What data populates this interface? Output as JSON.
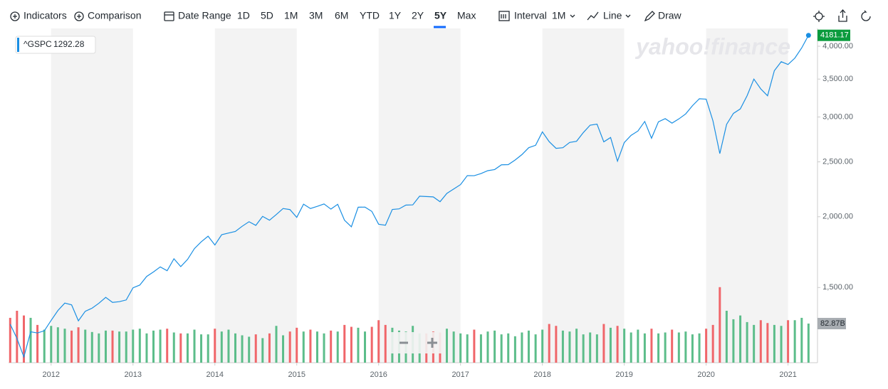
{
  "toolbar": {
    "indicators": "Indicators",
    "comparison": "Comparison",
    "date_range": "Date Range",
    "ranges": [
      "1D",
      "5D",
      "1M",
      "3M",
      "6M",
      "YTD",
      "1Y",
      "2Y",
      "5Y",
      "Max"
    ],
    "selected": 8,
    "interval": "Interval",
    "interval_value": "1M",
    "chart_style": "Line",
    "draw": "Draw"
  },
  "watermark": "yahoo!finance",
  "chart_data": {
    "type": "line",
    "log_scale": true,
    "x": [
      2011.5,
      2011.583,
      2011.667,
      2011.75,
      2011.833,
      2011.917,
      2012,
      2012.083,
      2012.167,
      2012.25,
      2012.333,
      2012.417,
      2012.5,
      2012.583,
      2012.667,
      2012.75,
      2012.833,
      2012.917,
      2013,
      2013.083,
      2013.167,
      2013.25,
      2013.333,
      2013.417,
      2013.5,
      2013.583,
      2013.667,
      2013.75,
      2013.833,
      2013.917,
      2014,
      2014.083,
      2014.167,
      2014.25,
      2014.333,
      2014.417,
      2014.5,
      2014.583,
      2014.667,
      2014.75,
      2014.833,
      2014.917,
      2015,
      2015.083,
      2015.167,
      2015.25,
      2015.333,
      2015.417,
      2015.5,
      2015.583,
      2015.667,
      2015.75,
      2015.833,
      2015.917,
      2016,
      2016.083,
      2016.167,
      2016.25,
      2016.333,
      2016.417,
      2016.5,
      2016.583,
      2016.667,
      2016.75,
      2016.833,
      2016.917,
      2017,
      2017.083,
      2017.167,
      2017.25,
      2017.333,
      2017.417,
      2017.5,
      2017.583,
      2017.667,
      2017.75,
      2017.833,
      2017.917,
      2018,
      2018.083,
      2018.167,
      2018.25,
      2018.333,
      2018.417,
      2018.5,
      2018.583,
      2018.667,
      2018.75,
      2018.833,
      2018.917,
      2019,
      2019.083,
      2019.167,
      2019.25,
      2019.333,
      2019.417,
      2019.5,
      2019.583,
      2019.667,
      2019.75,
      2019.833,
      2019.917,
      2020,
      2020.083,
      2020.167,
      2020.25,
      2020.333,
      2020.417,
      2020.5,
      2020.583,
      2020.667,
      2020.75,
      2020.833,
      2020.917,
      2021,
      2021.083,
      2021.167,
      2021.25
    ],
    "xlim": [
      2011.48,
      2021.36
    ],
    "xticks": [
      2012,
      2013,
      2014,
      2015,
      2016,
      2017,
      2018,
      2019,
      2020,
      2021
    ],
    "ylim": [
      1105,
      4300
    ],
    "yticks": [
      {
        "value": 1500,
        "label": "1,500.00"
      },
      {
        "value": 2000,
        "label": "2,000.00"
      },
      {
        "value": 2500,
        "label": "2,500.00"
      },
      {
        "value": 3000,
        "label": "3,000.00"
      },
      {
        "value": 3500,
        "label": "3,500.00"
      },
      {
        "value": 4000,
        "label": "4,000.00"
      }
    ],
    "y2lim": [
      0,
      708
    ],
    "series": [
      {
        "name": "^GSPC",
        "color": "#1a8fe3",
        "values": [
          1292.28,
          1219,
          1131,
          1253,
          1247,
          1258,
          1312,
          1366,
          1408,
          1398,
          1310,
          1362,
          1379,
          1407,
          1441,
          1412,
          1416,
          1426,
          1498,
          1515,
          1569,
          1598,
          1631,
          1606,
          1686,
          1633,
          1682,
          1757,
          1806,
          1848,
          1783,
          1859,
          1872,
          1884,
          1924,
          1960,
          1931,
          2003,
          1972,
          2018,
          2068,
          2059,
          1995,
          2105,
          2068,
          2086,
          2107,
          2063,
          2104,
          1972,
          1920,
          2079,
          2080,
          2044,
          1940,
          1932,
          2060,
          2065,
          2097,
          2099,
          2174,
          2171,
          2168,
          2126,
          2199,
          2239,
          2279,
          2364,
          2363,
          2384,
          2412,
          2423,
          2470,
          2472,
          2519,
          2575,
          2648,
          2674,
          2824,
          2714,
          2641,
          2648,
          2705,
          2718,
          2816,
          2902,
          2914,
          2712,
          2760,
          2507,
          2704,
          2784,
          2834,
          2946,
          2752,
          2942,
          2980,
          2926,
          2977,
          3038,
          3141,
          3231,
          3226,
          2954,
          2585,
          2912,
          3044,
          3100,
          3271,
          3500,
          3363,
          3270,
          3622,
          3756,
          3714,
          3811,
          3973,
          4181.17
        ]
      },
      {
        "type": "bar",
        "axis": "y2",
        "up_color": "#5cbd8a",
        "down_color": "#f0666a",
        "values": [
          95,
          110,
          100,
          95,
          80,
          70,
          78,
          75,
          72,
          68,
          75,
          70,
          65,
          62,
          68,
          68,
          66,
          66,
          70,
          72,
          62,
          68,
          70,
          72,
          64,
          62,
          62,
          70,
          60,
          60,
          72,
          66,
          70,
          62,
          58,
          55,
          60,
          52,
          62,
          78,
          58,
          66,
          74,
          66,
          70,
          66,
          62,
          68,
          66,
          80,
          76,
          74,
          66,
          76,
          90,
          80,
          74,
          68,
          66,
          78,
          62,
          62,
          66,
          64,
          72,
          66,
          62,
          60,
          70,
          60,
          66,
          68,
          60,
          62,
          56,
          64,
          68,
          60,
          70,
          82,
          78,
          68,
          66,
          72,
          60,
          64,
          60,
          82,
          74,
          78,
          72,
          64,
          70,
          62,
          72,
          62,
          64,
          70,
          64,
          66,
          60,
          62,
          72,
          80,
          160,
          110,
          92,
          100,
          86,
          80,
          90,
          84,
          80,
          78,
          90,
          90,
          95,
          82.87
        ],
        "value_labels": [
          null,
          null,
          null,
          null,
          null,
          null,
          null,
          null,
          null,
          null,
          null,
          null,
          null,
          null,
          null,
          null,
          null,
          null,
          null,
          null,
          null,
          null,
          null,
          null,
          null,
          null,
          null,
          null,
          null,
          null,
          null,
          null,
          null,
          null,
          null,
          null,
          null,
          null,
          null,
          null,
          null,
          null,
          null,
          null,
          null,
          null,
          null,
          null,
          null,
          null,
          null,
          null,
          null,
          null,
          null,
          null,
          null,
          null,
          null,
          null,
          null,
          null,
          null,
          null,
          null,
          null,
          null,
          null,
          null,
          null,
          null,
          null,
          null,
          null,
          null,
          null,
          null,
          null,
          null,
          null,
          null,
          null,
          null,
          null,
          null,
          null,
          null,
          null,
          null,
          null,
          null,
          null,
          null,
          null,
          null,
          null,
          null,
          null,
          null,
          null,
          null,
          null,
          null,
          null,
          null,
          null,
          null,
          null,
          null,
          null,
          null,
          null,
          null,
          null,
          null,
          null,
          null,
          "82.87B"
        ]
      }
    ]
  }
}
